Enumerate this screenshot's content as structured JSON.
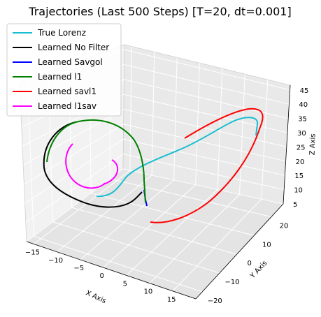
{
  "chart_data": {
    "type": "line",
    "projection": "3d",
    "title": "Trajectories (Last 500 Steps) [T=20, dt=0.001]",
    "xlabel": "X Axis",
    "ylabel": "Y Axis",
    "zlabel": "Z Axis",
    "xticks": [
      "−15",
      "−10",
      "−5",
      "0",
      "5",
      "10",
      "15"
    ],
    "yticks": [
      "−20",
      "−10",
      "0",
      "10",
      "20"
    ],
    "zticks": [
      "5",
      "10",
      "15",
      "20",
      "25",
      "30",
      "35",
      "40",
      "45"
    ],
    "grid": true,
    "legend_position": "top-left",
    "series": [
      {
        "name": "True Lorenz",
        "color": "#17becf"
      },
      {
        "name": "Learned No Filter",
        "color": "#000000"
      },
      {
        "name": "Learned Savgol",
        "color": "#0000ff"
      },
      {
        "name": "Learned l1",
        "color": "#008000"
      },
      {
        "name": "Learned savl1",
        "color": "#ff0000"
      },
      {
        "name": "Learned l1sav",
        "color": "#ff00ff"
      }
    ]
  }
}
